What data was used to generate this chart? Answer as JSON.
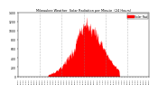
{
  "title": "Milwaukee Weather  Solar Radiation per Minute  (24 Hours)",
  "bar_color": "#ff0000",
  "background_color": "#ffffff",
  "grid_color": "#888888",
  "ylim": [
    0,
    1400
  ],
  "xlim": [
    0,
    1440
  ],
  "yticks": [
    0,
    200,
    400,
    600,
    800,
    1000,
    1200,
    1400
  ],
  "num_minutes": 1440,
  "legend_label": "Solar Rad",
  "legend_color": "#ff0000",
  "grid_positions": [
    240,
    480,
    720,
    960,
    1200
  ],
  "peak_minute": 760,
  "sigma": 170,
  "start_minute": 330,
  "end_minute": 1110
}
